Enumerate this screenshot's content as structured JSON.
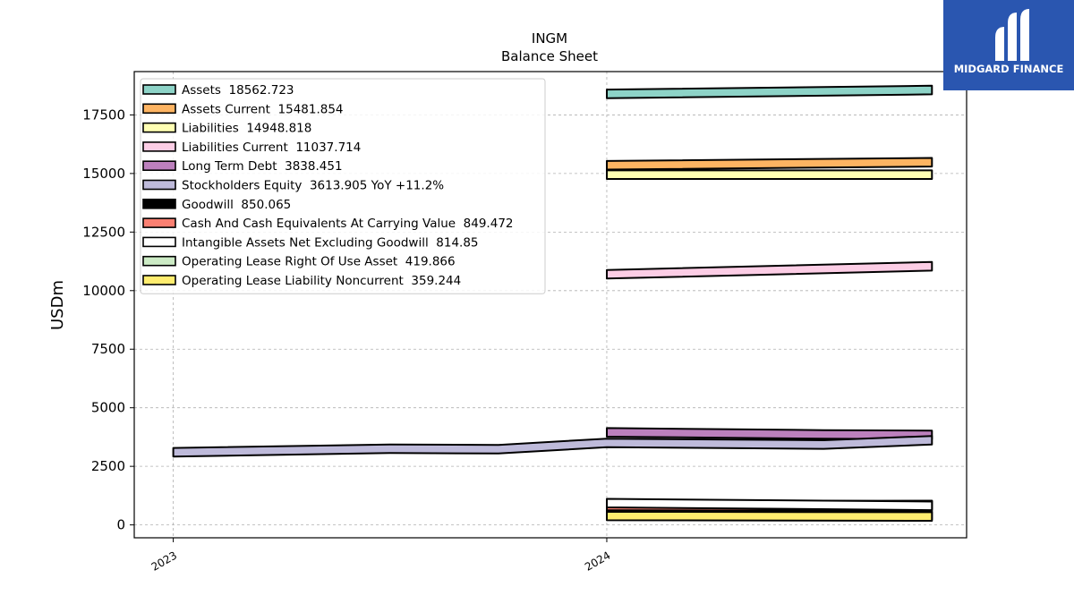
{
  "brand": {
    "name": "MIDGARD FINANCE",
    "color": "#2a56b0"
  },
  "chart_data": {
    "type": "area",
    "title": "INGM",
    "subtitle": "Balance  Sheet",
    "ylabel": "USDm",
    "xlabel": "",
    "x_ticks": [
      2023,
      2024
    ],
    "xlim": [
      2022.91,
      2024.83
    ],
    "ylim": [
      -550,
      19350
    ],
    "y_ticks": [
      0,
      2500,
      5000,
      7500,
      10000,
      12500,
      15000,
      17500
    ],
    "grid": true,
    "legend_position": "top-left",
    "series": [
      {
        "name": "Assets",
        "legend": "Assets  18562.723",
        "color": "#8dd3c7",
        "points": [
          [
            2024.0,
            18400
          ],
          [
            2024.75,
            18562.723
          ]
        ]
      },
      {
        "name": "Assets Current",
        "legend": "Assets Current  15481.854",
        "color": "#fdb462",
        "points": [
          [
            2024.0,
            15350
          ],
          [
            2024.75,
            15481.854
          ]
        ]
      },
      {
        "name": "Liabilities",
        "legend": "Liabilities  14948.818",
        "color": "#ffffb3",
        "points": [
          [
            2024.0,
            14950
          ],
          [
            2024.75,
            14948.818
          ]
        ]
      },
      {
        "name": "Liabilities Current",
        "legend": "Liabilities Current  11037.714",
        "color": "#fccde5",
        "points": [
          [
            2024.0,
            10700
          ],
          [
            2024.75,
            11037.714
          ]
        ]
      },
      {
        "name": "Long Term Debt",
        "legend": "Long Term Debt  3838.451",
        "color": "#bc80bd",
        "points": [
          [
            2024.0,
            3950
          ],
          [
            2024.5,
            3860
          ],
          [
            2024.75,
            3838.451
          ]
        ]
      },
      {
        "name": "Stockholders Equity",
        "legend": "Stockholders Equity  3613.905 YoY +11.2%",
        "color": "#bebada",
        "points": [
          [
            2023.0,
            3100
          ],
          [
            2023.5,
            3250
          ],
          [
            2023.75,
            3230
          ],
          [
            2024.0,
            3500
          ],
          [
            2024.5,
            3430
          ],
          [
            2024.75,
            3613.905
          ]
        ]
      },
      {
        "name": "Goodwill",
        "legend": "Goodwill  850.065",
        "color": "#000000",
        "points": [
          [
            2024.0,
            840
          ],
          [
            2024.75,
            850.065
          ]
        ]
      },
      {
        "name": "Cash And Cash Equivalents At Carrying Value",
        "legend": "Cash And Cash Equivalents At Carrying Value  849.472",
        "color": "#fb8072",
        "points": [
          [
            2024.0,
            760
          ],
          [
            2024.75,
            849.472
          ]
        ]
      },
      {
        "name": "Intangible Assets Net Excluding Goodwill",
        "legend": "Intangible Assets Net Excluding Goodwill  814.85",
        "color": "#ffffff",
        "points": [
          [
            2024.0,
            930
          ],
          [
            2024.75,
            814.85
          ]
        ]
      },
      {
        "name": "Operating Lease Right Of Use Asset",
        "legend": "Operating Lease Right Of Use Asset  419.866",
        "color": "#ccebc5",
        "points": [
          [
            2024.0,
            440
          ],
          [
            2024.75,
            419.866
          ]
        ]
      },
      {
        "name": "Operating Lease Liability Noncurrent",
        "legend": "Operating Lease Liability Noncurrent  359.244",
        "color": "#ffed6f",
        "points": [
          [
            2024.0,
            380
          ],
          [
            2024.75,
            359.244
          ]
        ]
      }
    ]
  }
}
